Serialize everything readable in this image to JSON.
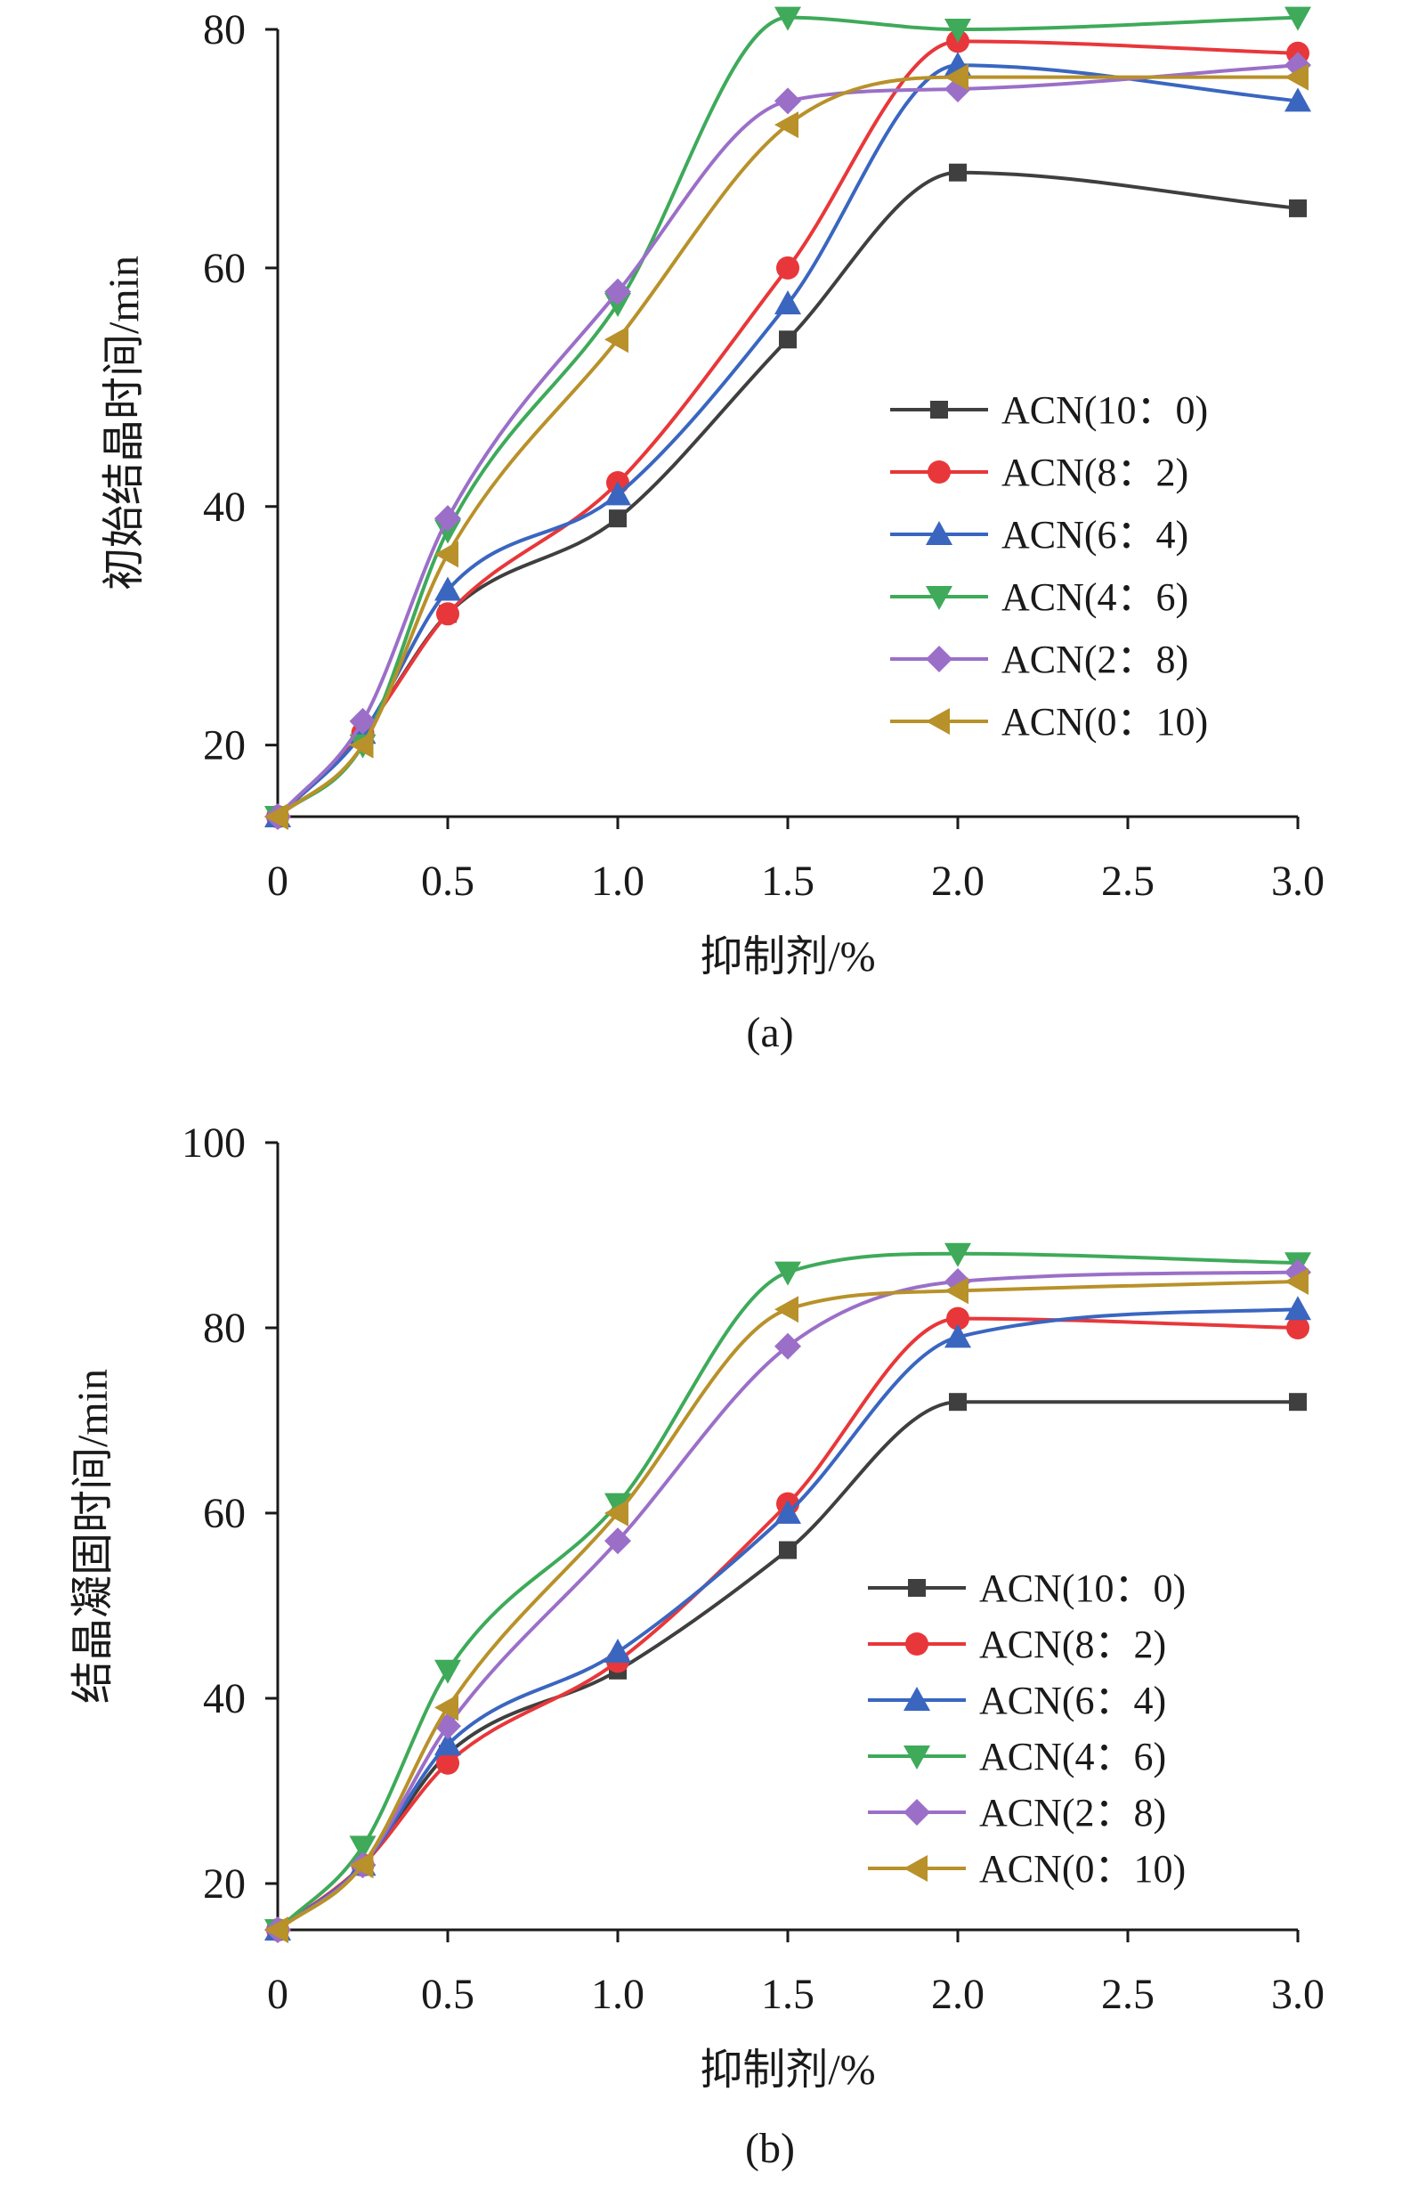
{
  "colors": {
    "ACN(10：0)": "#3f3f3f",
    "ACN(8：2)": "#e8373a",
    "ACN(6：4)": "#3a66c0",
    "ACN(4：6)": "#3eaa5a",
    "ACN(2：8)": "#9b6fc8",
    "ACN(0：10)": "#b8912a",
    "axis": "#1a1a1a"
  },
  "markers": {
    "ACN(10：0)": "square",
    "ACN(8：2)": "circle",
    "ACN(6：4)": "triangle-up",
    "ACN(4：6)": "triangle-down",
    "ACN(2：8)": "diamond",
    "ACN(0：10)": "triangle-left"
  },
  "chart_data": [
    {
      "type": "line",
      "panel_label": "(a)",
      "title": "",
      "xlabel": "抑制剂/%",
      "ylabel": "初始结晶时间/min",
      "xlim": [
        0,
        3.0
      ],
      "ylim": [
        14,
        80
      ],
      "xticks": [
        0,
        0.5,
        1.0,
        1.5,
        2.0,
        2.5,
        3.0
      ],
      "xtick_labels": [
        "0",
        "0.5",
        "1.0",
        "1.5",
        "2.0",
        "2.5",
        "3.0"
      ],
      "yticks": [
        20,
        40,
        60,
        80
      ],
      "ytick_labels": [
        "20",
        "40",
        "60",
        "80"
      ],
      "grid": false,
      "legend_position": "right-middle",
      "series": [
        {
          "name": "ACN(10：0)",
          "x": [
            0,
            0.25,
            0.5,
            1.0,
            1.5,
            2.0,
            3.0
          ],
          "y": [
            14,
            21,
            31,
            39,
            54,
            68,
            65
          ]
        },
        {
          "name": "ACN(8：2)",
          "x": [
            0,
            0.25,
            0.5,
            1.0,
            1.5,
            2.0,
            3.0
          ],
          "y": [
            14,
            21,
            31,
            42,
            60,
            79,
            78
          ]
        },
        {
          "name": "ACN(6：4)",
          "x": [
            0,
            0.25,
            0.5,
            1.0,
            1.5,
            2.0,
            3.0
          ],
          "y": [
            14,
            21,
            33,
            41,
            57,
            77,
            74
          ]
        },
        {
          "name": "ACN(4：6)",
          "x": [
            0,
            0.25,
            0.5,
            1.0,
            1.5,
            2.0,
            3.0
          ],
          "y": [
            14,
            20,
            38,
            57,
            81,
            80,
            81
          ]
        },
        {
          "name": "ACN(2：8)",
          "x": [
            0,
            0.25,
            0.5,
            1.0,
            1.5,
            2.0,
            3.0
          ],
          "y": [
            14,
            22,
            39,
            58,
            74,
            75,
            77
          ]
        },
        {
          "name": "ACN(0：10)",
          "x": [
            0,
            0.25,
            0.5,
            1.0,
            1.5,
            2.0,
            3.0
          ],
          "y": [
            14,
            20,
            36,
            54,
            72,
            76,
            76
          ]
        }
      ]
    },
    {
      "type": "line",
      "panel_label": "(b)",
      "title": "",
      "xlabel": "抑制剂/%",
      "ylabel": "结晶凝固时间/min",
      "xlim": [
        0,
        3.0
      ],
      "ylim": [
        15,
        100
      ],
      "xticks": [
        0,
        0.5,
        1.0,
        1.5,
        2.0,
        2.5,
        3.0
      ],
      "xtick_labels": [
        "0",
        "0.5",
        "1.0",
        "1.5",
        "2.0",
        "2.5",
        "3.0"
      ],
      "yticks": [
        20,
        40,
        60,
        80,
        100
      ],
      "ytick_labels": [
        "20",
        "40",
        "60",
        "80",
        "100"
      ],
      "grid": false,
      "legend_position": "right-middle",
      "series": [
        {
          "name": "ACN(10：0)",
          "x": [
            0,
            0.25,
            0.5,
            1.0,
            1.5,
            2.0,
            3.0
          ],
          "y": [
            15,
            22,
            34,
            43,
            56,
            72,
            72
          ]
        },
        {
          "name": "ACN(8：2)",
          "x": [
            0,
            0.25,
            0.5,
            1.0,
            1.5,
            2.0,
            3.0
          ],
          "y": [
            15,
            22,
            33,
            44,
            61,
            81,
            80
          ]
        },
        {
          "name": "ACN(6：4)",
          "x": [
            0,
            0.25,
            0.5,
            1.0,
            1.5,
            2.0,
            3.0
          ],
          "y": [
            15,
            22,
            35,
            45,
            60,
            79,
            82
          ]
        },
        {
          "name": "ACN(4：6)",
          "x": [
            0,
            0.25,
            0.5,
            1.0,
            1.5,
            2.0,
            3.0
          ],
          "y": [
            15,
            24,
            43,
            61,
            86,
            88,
            87
          ]
        },
        {
          "name": "ACN(2：8)",
          "x": [
            0,
            0.25,
            0.5,
            1.0,
            1.5,
            2.0,
            3.0
          ],
          "y": [
            15,
            22,
            37,
            57,
            78,
            85,
            86
          ]
        },
        {
          "name": "ACN(0：10)",
          "x": [
            0,
            0.25,
            0.5,
            1.0,
            1.5,
            2.0,
            3.0
          ],
          "y": [
            15,
            22,
            39,
            60,
            82,
            84,
            85
          ]
        }
      ]
    }
  ]
}
